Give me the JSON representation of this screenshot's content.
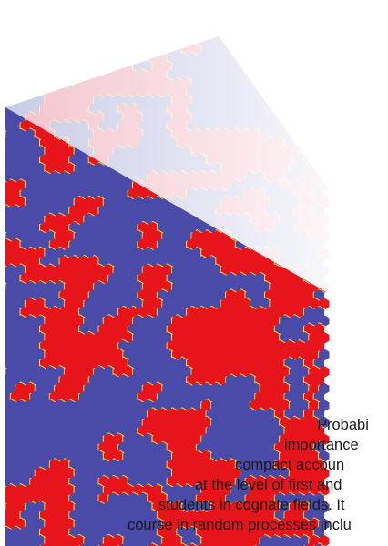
{
  "cover": {
    "colors": {
      "red": "#e8141c",
      "blue": "#4a4aa8",
      "yellow": "#f2d83a",
      "faded_red": "#f3c2cc",
      "faded_blue": "#c9cbe6",
      "faded_yellow": "#f6eeb8"
    },
    "blurb_lines": [
      "Probabi",
      "importance",
      "compact accoun",
      "at the level of first and",
      "students in cognate fields. It",
      "course in random processes inclu"
    ]
  }
}
